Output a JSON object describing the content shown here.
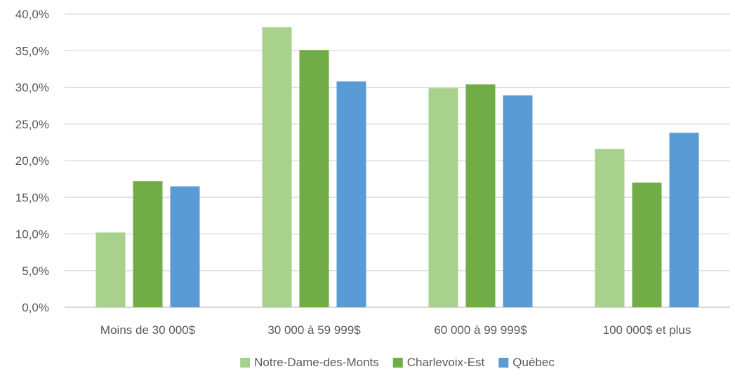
{
  "chart_data": {
    "type": "bar",
    "categories": [
      "Moins de 30 000$",
      "30 000 à 59 999$",
      "60 000 à 99 999$",
      "100 000$ et plus"
    ],
    "series": [
      {
        "name": "Notre-Dame-des-Monts",
        "color": "#a9d18e",
        "values": [
          10.2,
          38.2,
          29.9,
          21.6
        ]
      },
      {
        "name": "Charlevoix-Est",
        "color": "#70ad47",
        "values": [
          17.2,
          35.1,
          30.4,
          17.0
        ]
      },
      {
        "name": "Québec",
        "color": "#5b9bd5",
        "values": [
          16.5,
          30.8,
          28.9,
          23.8
        ]
      }
    ],
    "ylim": [
      0,
      40
    ],
    "yticks": [
      0,
      5,
      10,
      15,
      20,
      25,
      30,
      35,
      40
    ],
    "ytick_labels": [
      "0,0%",
      "5,0%",
      "10,0%",
      "15,0%",
      "20,0%",
      "25,0%",
      "30,0%",
      "35,0%",
      "40,0%"
    ],
    "grid": true,
    "legend_position": "bottom",
    "title": "",
    "xlabel": "",
    "ylabel": ""
  }
}
